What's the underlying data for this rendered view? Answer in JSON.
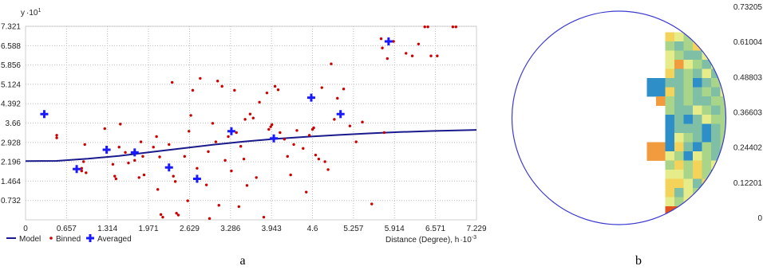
{
  "chart_data": [
    {
      "type": "scatter",
      "panel_label": "a",
      "ylabel": "y",
      "y_multiplier": "·10",
      "y_multiplier_exp": "1",
      "xlabel": "Distance (Degree), h",
      "x_multiplier": "·10",
      "x_multiplier_exp": "-3",
      "xlim": [
        0,
        7.229
      ],
      "ylim": [
        0,
        7.321
      ],
      "grid": true,
      "x_ticks": [
        "0",
        "0.657",
        "1.314",
        "1.971",
        "2.629",
        "3.286",
        "3.943",
        "4.6",
        "5.257",
        "5.914",
        "6.571",
        "7.229"
      ],
      "x_tick_values": [
        0,
        0.657,
        1.314,
        1.971,
        2.629,
        3.286,
        3.943,
        4.6,
        5.257,
        5.914,
        6.571,
        7.229
      ],
      "y_ticks": [
        "7.321",
        "6.588",
        "5.856",
        "5.124",
        "4.392",
        "3.66",
        "2.928",
        "2.196",
        "1.464",
        "0.732"
      ],
      "y_tick_values": [
        7.321,
        6.588,
        5.856,
        5.124,
        4.392,
        3.66,
        2.928,
        2.196,
        1.464,
        0.732
      ],
      "legend_position": "bottom-left",
      "series": [
        {
          "name": "Model",
          "kind": "line",
          "color": "#1a1a8c",
          "points": [
            [
              0,
              2.22
            ],
            [
              0.5,
              2.23
            ],
            [
              1.0,
              2.31
            ],
            [
              1.5,
              2.42
            ],
            [
              2.0,
              2.56
            ],
            [
              2.5,
              2.7
            ],
            [
              3.0,
              2.84
            ],
            [
              3.5,
              2.96
            ],
            [
              4.0,
              3.06
            ],
            [
              4.5,
              3.14
            ],
            [
              5.0,
              3.21
            ],
            [
              5.5,
              3.27
            ],
            [
              6.0,
              3.32
            ],
            [
              6.5,
              3.36
            ],
            [
              7.229,
              3.4
            ]
          ]
        },
        {
          "name": "Binned",
          "kind": "points",
          "color": "#cc0000",
          "points": [
            [
              0.5,
              3.2
            ],
            [
              0.5,
              3.1
            ],
            [
              0.9,
              1.85
            ],
            [
              0.9,
              1.95
            ],
            [
              0.93,
              2.2
            ],
            [
              0.95,
              2.85
            ],
            [
              0.97,
              1.78
            ],
            [
              1.27,
              3.45
            ],
            [
              1.4,
              2.1
            ],
            [
              1.43,
              1.65
            ],
            [
              1.45,
              1.55
            ],
            [
              1.5,
              2.75
            ],
            [
              1.52,
              3.62
            ],
            [
              1.6,
              2.55
            ],
            [
              1.65,
              2.15
            ],
            [
              1.75,
              2.25
            ],
            [
              1.82,
              1.6
            ],
            [
              1.85,
              2.95
            ],
            [
              1.88,
              2.4
            ],
            [
              1.9,
              1.7
            ],
            [
              2.05,
              2.75
            ],
            [
              2.1,
              3.15
            ],
            [
              2.12,
              1.15
            ],
            [
              2.15,
              2.38
            ],
            [
              2.17,
              0.2
            ],
            [
              2.2,
              0.1
            ],
            [
              2.3,
              2.85
            ],
            [
              2.35,
              5.2
            ],
            [
              2.37,
              1.65
            ],
            [
              2.4,
              1.45
            ],
            [
              2.42,
              0.25
            ],
            [
              2.45,
              0.18
            ],
            [
              2.55,
              2.4
            ],
            [
              2.6,
              0.72
            ],
            [
              2.62,
              3.35
            ],
            [
              2.65,
              3.95
            ],
            [
              2.68,
              4.9
            ],
            [
              2.75,
              1.95
            ],
            [
              2.8,
              5.35
            ],
            [
              2.9,
              1.32
            ],
            [
              2.93,
              2.58
            ],
            [
              2.95,
              0.05
            ],
            [
              3.0,
              3.65
            ],
            [
              3.05,
              2.95
            ],
            [
              3.08,
              5.25
            ],
            [
              3.1,
              0.55
            ],
            [
              3.15,
              5.05
            ],
            [
              3.2,
              2.25
            ],
            [
              3.25,
              3.15
            ],
            [
              3.3,
              1.85
            ],
            [
              3.35,
              4.9
            ],
            [
              3.38,
              3.3
            ],
            [
              3.42,
              0.5
            ],
            [
              3.45,
              2.78
            ],
            [
              3.5,
              2.3
            ],
            [
              3.52,
              3.8
            ],
            [
              3.55,
              1.3
            ],
            [
              3.6,
              4.0
            ],
            [
              3.65,
              3.85
            ],
            [
              3.7,
              1.6
            ],
            [
              3.75,
              4.45
            ],
            [
              3.82,
              0.1
            ],
            [
              3.87,
              4.8
            ],
            [
              3.9,
              3.42
            ],
            [
              3.93,
              3.52
            ],
            [
              3.95,
              3.6
            ],
            [
              4.0,
              5.05
            ],
            [
              4.05,
              4.92
            ],
            [
              4.08,
              3.3
            ],
            [
              4.15,
              3.05
            ],
            [
              4.2,
              2.4
            ],
            [
              4.25,
              1.7
            ],
            [
              4.3,
              2.85
            ],
            [
              4.35,
              3.38
            ],
            [
              4.45,
              2.7
            ],
            [
              4.5,
              1.05
            ],
            [
              4.55,
              3.2
            ],
            [
              4.6,
              3.42
            ],
            [
              4.62,
              3.48
            ],
            [
              4.65,
              2.45
            ],
            [
              4.7,
              2.3
            ],
            [
              4.75,
              5.0
            ],
            [
              4.8,
              2.2
            ],
            [
              4.85,
              1.9
            ],
            [
              4.9,
              5.9
            ],
            [
              4.95,
              3.8
            ],
            [
              5.0,
              4.6
            ],
            [
              5.1,
              4.95
            ],
            [
              5.2,
              3.55
            ],
            [
              5.3,
              2.95
            ],
            [
              5.4,
              3.7
            ],
            [
              5.55,
              0.6
            ],
            [
              5.7,
              6.85
            ],
            [
              5.72,
              6.5
            ],
            [
              5.75,
              3.3
            ],
            [
              5.8,
              6.1
            ],
            [
              5.9,
              6.75
            ],
            [
              6.1,
              6.3
            ],
            [
              6.2,
              6.2
            ],
            [
              6.3,
              6.65
            ],
            [
              6.4,
              7.3
            ],
            [
              6.45,
              7.3
            ],
            [
              6.5,
              6.2
            ],
            [
              6.6,
              6.2
            ],
            [
              6.85,
              7.3
            ],
            [
              6.9,
              7.3
            ]
          ]
        },
        {
          "name": "Averaged",
          "kind": "crosses",
          "color": "#1a1aff",
          "points": [
            [
              0.3,
              4.0
            ],
            [
              0.82,
              1.92
            ],
            [
              1.3,
              2.65
            ],
            [
              1.75,
              2.55
            ],
            [
              2.3,
              1.98
            ],
            [
              2.75,
              1.55
            ],
            [
              3.3,
              3.35
            ],
            [
              3.98,
              3.08
            ],
            [
              4.58,
              4.62
            ],
            [
              5.05,
              4.0
            ],
            [
              5.82,
              6.75
            ]
          ]
        }
      ]
    },
    {
      "type": "heatmap",
      "panel_label": "b",
      "colorbar_ticks": [
        "0.73205",
        "0.61004",
        "0.48803",
        "0.36603",
        "0.24402",
        "0.12201",
        "0"
      ],
      "colorbar_tick_values": [
        0.73205,
        0.61004,
        0.48803,
        0.36603,
        0.24402,
        0.12201,
        0
      ],
      "color_classes": {
        "B": "#2e8fc8",
        "T": "#7fbfa6",
        "G": "#a8d58a",
        "L": "#e6ec8a",
        "Y": "#f3d35a",
        "O": "#f29a3e",
        "R": "#e2541c"
      },
      "rows": [
        "                      RR            ",
        "                      RR            ",
        "                   GY GYO           ",
        "                 YLGTGLGL           ",
        "                 GTGYTGLGG          ",
        "                 LGTTLGBTG          ",
        "                 LOLGTLGTG          ",
        "                 YTGTLTTGL          ",
        "               BBTTGBTGYLOO         ",
        "               BBYTGTGTLYOO         ",
        "                OGTGTTGGBY          ",
        "                 GTTLGTGBT          ",
        "                 BTBTLGGBT          ",
        "                 BTTTBTGBG          ",
        "                 BLGTBTGOO          ",
        "               OOBYTBGTGBY          ",
        "               OOLGBLGTLGG          ",
        "                 GYGYGLYGL          ",
        "                 LLGYGBYTG          ",
        "                 YYLTYLGLG          ",
        "                 YTLGTGL G          ",
        "                 LGLGTT             ",
        "                 RRGLG              ",
        "                 RR  RR             ",
        "                     RR             "
      ]
    }
  ]
}
